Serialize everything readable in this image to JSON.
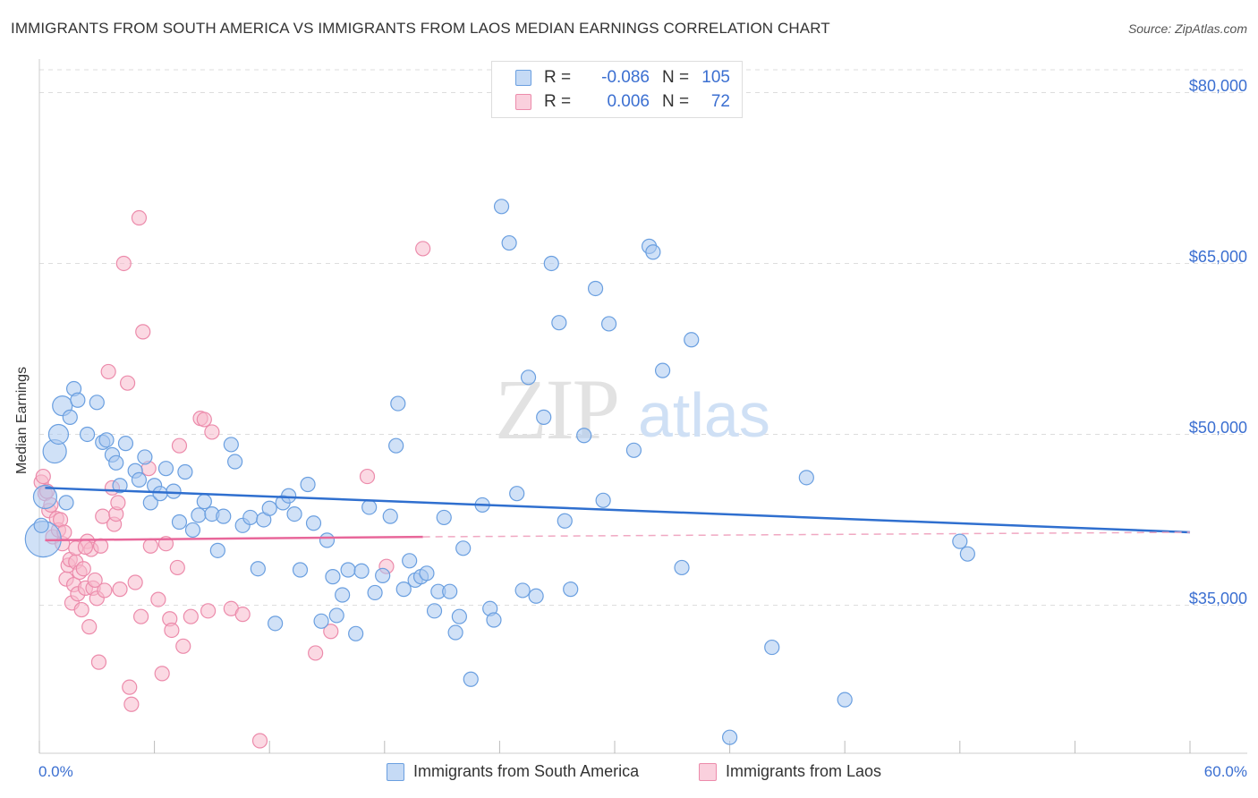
{
  "title": "IMMIGRANTS FROM SOUTH AMERICA VS IMMIGRANTS FROM LAOS MEDIAN EARNINGS CORRELATION CHART",
  "source": "Source: ZipAtlas.com",
  "watermark": {
    "zip": "ZIP",
    "atlas": "atlas"
  },
  "colors": {
    "blue_fill": "#a9c8f0",
    "blue_stroke": "#6a9fe0",
    "blue_line": "#2f6fcf",
    "pink_fill": "#f7b9cc",
    "pink_stroke": "#ec8bab",
    "pink_line": "#e8679a",
    "tick_text": "#3b6fd1",
    "grid": "#dddddd"
  },
  "legend": {
    "rows": [
      {
        "r_label": "R =",
        "r_value": "-0.086",
        "n_label": "N =",
        "n_value": "105"
      },
      {
        "r_label": "R =",
        "r_value": "0.006",
        "n_label": "N =",
        "n_value": "72"
      }
    ]
  },
  "chart_data": {
    "type": "scatter",
    "title": "IMMIGRANTS FROM SOUTH AMERICA VS IMMIGRANTS FROM LAOS MEDIAN EARNINGS CORRELATION CHART",
    "xlabel": "",
    "ylabel": "Median Earnings",
    "xlim": [
      0,
      60
    ],
    "ylim": [
      22000,
      82000
    ],
    "x_tick_labels": [
      "0.0%",
      "60.0%"
    ],
    "y_ticks": [
      35000,
      50000,
      65000,
      80000
    ],
    "y_tick_labels": [
      "$35,000",
      "$50,000",
      "$65,000",
      "$80,000"
    ],
    "grid": true,
    "legend_position": "top-center",
    "series": [
      {
        "name": "Immigrants from South America",
        "r": -0.086,
        "n": 105,
        "trend": {
          "x0": 0.3,
          "y0": 45300,
          "x1": 60,
          "y1": 41400,
          "style": "solid"
        },
        "points": [
          [
            0.2,
            40800
          ],
          [
            0.3,
            44500
          ],
          [
            0.8,
            48500
          ],
          [
            1.0,
            50000
          ],
          [
            1.2,
            52500
          ],
          [
            1.4,
            44000
          ],
          [
            1.6,
            51500
          ],
          [
            1.8,
            54000
          ],
          [
            2.0,
            53000
          ],
          [
            2.5,
            50000
          ],
          [
            3.0,
            52800
          ],
          [
            3.3,
            49300
          ],
          [
            3.5,
            49500
          ],
          [
            3.8,
            48200
          ],
          [
            4.0,
            47500
          ],
          [
            4.2,
            45500
          ],
          [
            4.5,
            49200
          ],
          [
            5.0,
            46800
          ],
          [
            5.2,
            46000
          ],
          [
            5.5,
            48000
          ],
          [
            5.8,
            44000
          ],
          [
            6.0,
            45500
          ],
          [
            6.3,
            44800
          ],
          [
            6.6,
            47000
          ],
          [
            7.0,
            45000
          ],
          [
            7.3,
            42300
          ],
          [
            7.6,
            46700
          ],
          [
            8.0,
            41600
          ],
          [
            8.3,
            42900
          ],
          [
            8.6,
            44100
          ],
          [
            9.0,
            43000
          ],
          [
            9.3,
            39800
          ],
          [
            9.6,
            42800
          ],
          [
            10.0,
            49100
          ],
          [
            10.2,
            47600
          ],
          [
            10.6,
            42000
          ],
          [
            11.0,
            42700
          ],
          [
            11.4,
            38200
          ],
          [
            11.7,
            42500
          ],
          [
            12.0,
            43500
          ],
          [
            12.3,
            33400
          ],
          [
            12.7,
            44000
          ],
          [
            13.0,
            44600
          ],
          [
            13.3,
            43000
          ],
          [
            13.6,
            38100
          ],
          [
            14.0,
            45600
          ],
          [
            14.3,
            42200
          ],
          [
            14.7,
            33600
          ],
          [
            15.0,
            40700
          ],
          [
            15.3,
            37500
          ],
          [
            15.5,
            34100
          ],
          [
            15.8,
            35900
          ],
          [
            16.1,
            38100
          ],
          [
            16.5,
            32500
          ],
          [
            16.8,
            38000
          ],
          [
            17.2,
            43600
          ],
          [
            17.5,
            36100
          ],
          [
            17.9,
            37600
          ],
          [
            18.3,
            42800
          ],
          [
            18.6,
            49000
          ],
          [
            18.7,
            52700
          ],
          [
            19.0,
            36400
          ],
          [
            19.3,
            38900
          ],
          [
            19.6,
            37200
          ],
          [
            19.9,
            37500
          ],
          [
            20.2,
            37800
          ],
          [
            20.6,
            34500
          ],
          [
            20.8,
            36200
          ],
          [
            21.1,
            42700
          ],
          [
            21.4,
            36200
          ],
          [
            21.7,
            32600
          ],
          [
            21.9,
            34000
          ],
          [
            22.1,
            40000
          ],
          [
            22.5,
            28500
          ],
          [
            23.1,
            43800
          ],
          [
            23.5,
            34700
          ],
          [
            23.7,
            33700
          ],
          [
            24.1,
            70000
          ],
          [
            24.5,
            66800
          ],
          [
            24.9,
            44800
          ],
          [
            25.2,
            36300
          ],
          [
            25.5,
            55000
          ],
          [
            25.9,
            35800
          ],
          [
            26.3,
            51500
          ],
          [
            26.7,
            65000
          ],
          [
            27.1,
            59800
          ],
          [
            27.4,
            42400
          ],
          [
            27.7,
            36400
          ],
          [
            28.4,
            49900
          ],
          [
            29.0,
            62800
          ],
          [
            29.4,
            44200
          ],
          [
            29.7,
            59700
          ],
          [
            31.0,
            48600
          ],
          [
            31.8,
            66500
          ],
          [
            32.0,
            66000
          ],
          [
            32.5,
            55600
          ],
          [
            33.5,
            38300
          ],
          [
            34.0,
            58300
          ],
          [
            36.0,
            23400
          ],
          [
            38.2,
            31300
          ],
          [
            40.0,
            46200
          ],
          [
            42.0,
            26700
          ],
          [
            48.0,
            40600
          ],
          [
            48.4,
            39500
          ],
          [
            0.1,
            42000
          ]
        ]
      },
      {
        "name": "Immigrants from Laos",
        "r": 0.006,
        "n": 72,
        "trend": {
          "x0": 0.3,
          "y0": 40700,
          "x1": 20.0,
          "y1": 41000,
          "style": "solid",
          "dash_to": {
            "x": 60,
            "y": 41400
          }
        },
        "points": [
          [
            0.1,
            45800
          ],
          [
            0.3,
            44800
          ],
          [
            0.5,
            43300
          ],
          [
            0.7,
            41000
          ],
          [
            0.9,
            42600
          ],
          [
            1.0,
            41600
          ],
          [
            1.1,
            42500
          ],
          [
            1.2,
            40400
          ],
          [
            1.4,
            37300
          ],
          [
            1.5,
            38500
          ],
          [
            1.6,
            39000
          ],
          [
            1.7,
            35200
          ],
          [
            1.8,
            36800
          ],
          [
            1.9,
            38800
          ],
          [
            2.0,
            36000
          ],
          [
            2.1,
            37900
          ],
          [
            2.2,
            34600
          ],
          [
            2.3,
            38200
          ],
          [
            2.4,
            36500
          ],
          [
            2.5,
            40600
          ],
          [
            2.6,
            33100
          ],
          [
            2.7,
            39900
          ],
          [
            2.8,
            36500
          ],
          [
            2.9,
            37200
          ],
          [
            3.0,
            35600
          ],
          [
            3.1,
            30000
          ],
          [
            3.2,
            40200
          ],
          [
            3.3,
            42800
          ],
          [
            3.4,
            36300
          ],
          [
            3.6,
            55500
          ],
          [
            3.8,
            45300
          ],
          [
            3.9,
            42100
          ],
          [
            4.0,
            43000
          ],
          [
            4.1,
            44000
          ],
          [
            4.2,
            36400
          ],
          [
            4.4,
            65000
          ],
          [
            4.6,
            54500
          ],
          [
            4.7,
            27800
          ],
          [
            4.8,
            26300
          ],
          [
            5.0,
            37000
          ],
          [
            5.2,
            69000
          ],
          [
            5.3,
            34000
          ],
          [
            5.4,
            59000
          ],
          [
            5.7,
            47000
          ],
          [
            5.8,
            40200
          ],
          [
            6.2,
            35500
          ],
          [
            6.4,
            29000
          ],
          [
            6.6,
            40400
          ],
          [
            6.8,
            33800
          ],
          [
            6.9,
            32800
          ],
          [
            7.2,
            38300
          ],
          [
            7.3,
            49000
          ],
          [
            7.5,
            31400
          ],
          [
            7.9,
            34000
          ],
          [
            8.4,
            51400
          ],
          [
            8.6,
            51300
          ],
          [
            8.8,
            34500
          ],
          [
            9.0,
            50200
          ],
          [
            10.0,
            34700
          ],
          [
            10.6,
            34200
          ],
          [
            11.5,
            23100
          ],
          [
            14.4,
            30800
          ],
          [
            15.2,
            32700
          ],
          [
            17.1,
            46300
          ],
          [
            18.1,
            38400
          ],
          [
            20.0,
            66300
          ],
          [
            0.2,
            46300
          ],
          [
            0.4,
            45000
          ],
          [
            0.6,
            43800
          ],
          [
            1.3,
            41400
          ],
          [
            1.9,
            40000
          ],
          [
            2.4,
            40100
          ]
        ]
      }
    ]
  }
}
